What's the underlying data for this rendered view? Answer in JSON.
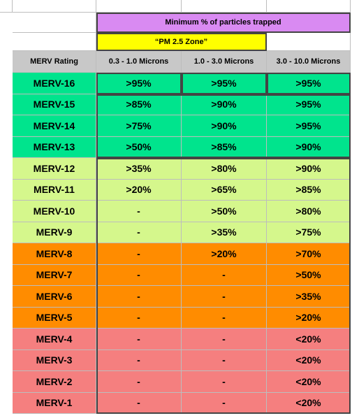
{
  "header": {
    "title": "Minimum % of particles trapped",
    "zone": "“PM 2.5 Zone”"
  },
  "columns": [
    "MERV Rating",
    "0.3 - 1.0 Microns",
    "1.0 - 3.0 Microns",
    "3.0 - 10.0 Microns"
  ],
  "rows": [
    [
      "MERV-16",
      ">95%",
      ">95%",
      ">95%"
    ],
    [
      "MERV-15",
      ">85%",
      ">90%",
      ">95%"
    ],
    [
      "MERV-14",
      ">75%",
      ">90%",
      ">95%"
    ],
    [
      "MERV-13",
      ">50%",
      ">85%",
      ">90%"
    ],
    [
      "MERV-12",
      ">35%",
      ">80%",
      ">90%"
    ],
    [
      "MERV-11",
      ">20%",
      ">65%",
      ">85%"
    ],
    [
      "MERV-10",
      "-",
      ">50%",
      ">80%"
    ],
    [
      "MERV-9",
      "-",
      ">35%",
      ">75%"
    ],
    [
      "MERV-8",
      "-",
      ">20%",
      ">70%"
    ],
    [
      "MERV-7",
      "-",
      "-",
      ">50%"
    ],
    [
      "MERV-6",
      "-",
      "-",
      ">35%"
    ],
    [
      "MERV-5",
      "-",
      "-",
      ">20%"
    ],
    [
      "MERV-4",
      "-",
      "-",
      "<20%"
    ],
    [
      "MERV-3",
      "-",
      "-",
      "<20%"
    ],
    [
      "MERV-2",
      "-",
      "-",
      "<20%"
    ],
    [
      "MERV-1",
      "-",
      "-",
      "<20%"
    ]
  ]
}
